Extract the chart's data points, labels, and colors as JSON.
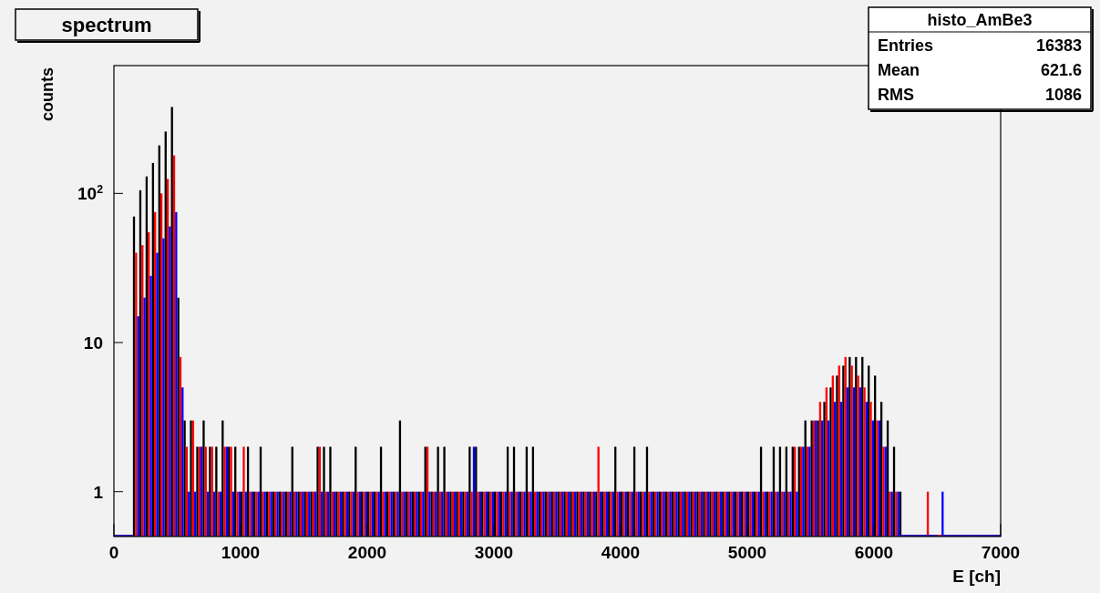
{
  "chart_data": {
    "type": "histogram",
    "title": "spectrum",
    "xlabel": "E [ch]",
    "ylabel": "counts",
    "log": "y",
    "grid": false,
    "xlim": [
      0,
      7000
    ],
    "xticks": [
      0,
      1000,
      2000,
      3000,
      4000,
      5000,
      6000,
      7000
    ],
    "ylim": [
      0.5,
      720
    ],
    "yticks": [
      1,
      10,
      {
        "value": 100,
        "label": "10$^{2}$"
      }
    ],
    "annotations": [
      "histo_AmBe3",
      "Entries",
      "16383",
      "Mean",
      "621.6",
      "RMS",
      "1086"
    ],
    "bins": [
      0,
      50,
      100,
      150,
      200,
      250,
      300,
      350,
      400,
      450,
      500,
      550,
      600,
      650,
      700,
      750,
      800,
      850,
      900,
      950,
      1000,
      1050,
      1100,
      1150,
      1200,
      1250,
      1300,
      1350,
      1400,
      1450,
      1500,
      1550,
      1600,
      1650,
      1700,
      1750,
      1800,
      1850,
      1900,
      1950,
      2000,
      2050,
      2100,
      2150,
      2200,
      2250,
      2300,
      2350,
      2400,
      2450,
      2500,
      2550,
      2600,
      2650,
      2700,
      2750,
      2800,
      2850,
      2900,
      2950,
      3000,
      3050,
      3100,
      3150,
      3200,
      3250,
      3300,
      3350,
      3400,
      3450,
      3500,
      3550,
      3600,
      3650,
      3700,
      3750,
      3800,
      3850,
      3900,
      3950,
      4000,
      4050,
      4100,
      4150,
      4200,
      4250,
      4300,
      4350,
      4400,
      4450,
      4500,
      4550,
      4600,
      4650,
      4700,
      4750,
      4800,
      4850,
      4900,
      4950,
      5000,
      5050,
      5100,
      5150,
      5200,
      5250,
      5300,
      5350,
      5400,
      5450,
      5500,
      5550,
      5600,
      5650,
      5700,
      5750,
      5800,
      5850,
      5900,
      5950,
      6000,
      6050,
      6100,
      6150,
      6200,
      6250,
      6300,
      6350,
      6400,
      6450,
      6500,
      6550,
      6600,
      6650,
      6700,
      6750,
      6800,
      6850,
      6900,
      6950,
      7000
    ],
    "series": [
      {
        "color": "#000000",
        "values": [
          null,
          null,
          null,
          70,
          105,
          130,
          160,
          210,
          260,
          380,
          20,
          3,
          3,
          2,
          3,
          2,
          2,
          3,
          2,
          2,
          1,
          2,
          1,
          2,
          1,
          1,
          1,
          1,
          2,
          1,
          1,
          1,
          2,
          2,
          2,
          1,
          1,
          1,
          2,
          1,
          1,
          1,
          2,
          1,
          1,
          3,
          1,
          1,
          1,
          2,
          1,
          2,
          2,
          1,
          1,
          1,
          2,
          2,
          1,
          1,
          1,
          1,
          2,
          2,
          1,
          2,
          2,
          1,
          1,
          1,
          1,
          1,
          1,
          1,
          1,
          1,
          1,
          1,
          1,
          2,
          1,
          1,
          2,
          1,
          2,
          1,
          1,
          1,
          1,
          1,
          1,
          1,
          1,
          1,
          1,
          1,
          1,
          1,
          1,
          1,
          1,
          1,
          2,
          1,
          2,
          2,
          2,
          2,
          2,
          3,
          3,
          3,
          4,
          5,
          6,
          7,
          8,
          8,
          8,
          7,
          6,
          4,
          3,
          2,
          1,
          null,
          null,
          null,
          null,
          null,
          null,
          null,
          null,
          null,
          null,
          null,
          null,
          null,
          null,
          null
        ]
      },
      {
        "color": "#ff0000",
        "values": [
          null,
          null,
          null,
          40,
          45,
          55,
          75,
          100,
          125,
          180,
          8,
          2,
          3,
          2,
          2,
          2,
          1,
          2,
          2,
          1,
          2,
          1,
          1,
          1,
          1,
          1,
          1,
          1,
          1,
          1,
          1,
          1,
          2,
          1,
          1,
          1,
          1,
          1,
          1,
          1,
          1,
          1,
          1,
          1,
          1,
          1,
          1,
          1,
          1,
          2,
          1,
          1,
          1,
          1,
          1,
          1,
          1,
          1,
          1,
          1,
          1,
          1,
          1,
          1,
          1,
          1,
          1,
          1,
          1,
          1,
          1,
          1,
          1,
          1,
          1,
          1,
          2,
          1,
          1,
          1,
          1,
          1,
          1,
          1,
          1,
          1,
          1,
          1,
          1,
          1,
          1,
          1,
          1,
          1,
          1,
          1,
          1,
          1,
          1,
          1,
          1,
          1,
          1,
          1,
          1,
          1,
          1,
          2,
          2,
          2,
          3,
          4,
          5,
          6,
          7,
          8,
          7,
          6,
          5,
          4,
          3,
          2,
          1,
          1,
          null,
          null,
          null,
          null,
          1,
          null,
          null,
          null,
          null,
          null,
          null,
          null,
          null,
          null,
          null,
          null
        ]
      },
      {
        "color": "#0000ff",
        "values": [
          null,
          null,
          null,
          15,
          20,
          28,
          40,
          50,
          60,
          75,
          5,
          1,
          1,
          2,
          1,
          1,
          1,
          2,
          1,
          1,
          1,
          1,
          1,
          1,
          1,
          1,
          1,
          1,
          1,
          1,
          1,
          1,
          1,
          1,
          1,
          1,
          1,
          1,
          1,
          1,
          1,
          1,
          1,
          1,
          1,
          1,
          1,
          1,
          1,
          1,
          1,
          1,
          1,
          1,
          1,
          1,
          2,
          1,
          1,
          1,
          1,
          1,
          1,
          1,
          1,
          1,
          1,
          1,
          1,
          1,
          1,
          1,
          1,
          1,
          1,
          1,
          1,
          1,
          1,
          1,
          1,
          1,
          1,
          1,
          1,
          1,
          1,
          1,
          1,
          1,
          1,
          1,
          1,
          1,
          1,
          1,
          1,
          1,
          1,
          1,
          1,
          1,
          1,
          1,
          1,
          1,
          1,
          1,
          2,
          2,
          3,
          3,
          3,
          4,
          4,
          5,
          5,
          5,
          4,
          3,
          3,
          2,
          1,
          1,
          null,
          null,
          null,
          null,
          null,
          null,
          1,
          null,
          null,
          null,
          null,
          null,
          null,
          null,
          null,
          null
        ]
      }
    ]
  }
}
